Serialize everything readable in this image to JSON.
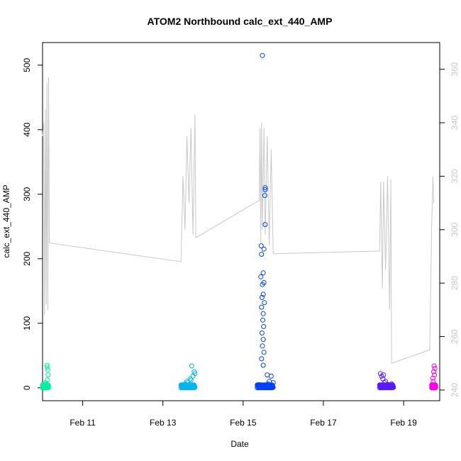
{
  "chart_data": {
    "type": "scatter",
    "title": "ATOM2 Northbound calc_ext_440_AMP",
    "xlabel": "Date",
    "ylabel": "calc_ext_440_AMP",
    "x_ticks": [
      "Feb 11",
      "Feb 13",
      "Feb 15",
      "Feb 17",
      "Feb 19"
    ],
    "y_ticks": [
      "0",
      "100",
      "200",
      "300",
      "400",
      "500"
    ],
    "y2_ticks": [
      "240",
      "260",
      "280",
      "300",
      "320",
      "340",
      "360"
    ],
    "xlim_days": [
      10,
      19.9
    ],
    "ylim": [
      -20,
      535
    ],
    "y2lim": [
      236,
      370
    ],
    "line_color": "#c8c8c8",
    "y2_color": "#c8c8c8",
    "grid": false,
    "series": [
      {
        "color": "#00f0a0",
        "x_range_days": [
          10.0,
          10.15
        ],
        "points": [
          [
            10.02,
            2
          ],
          [
            10.04,
            5
          ],
          [
            10.06,
            1
          ],
          [
            10.08,
            8
          ],
          [
            10.1,
            3
          ],
          [
            10.12,
            12
          ],
          [
            10.14,
            20
          ],
          [
            10.13,
            28
          ],
          [
            10.11,
            35
          ],
          [
            10.12,
            32
          ],
          [
            10.05,
            4
          ],
          [
            10.09,
            6
          ]
        ]
      },
      {
        "color": "#00b4f0",
        "x_range_days": [
          13.45,
          13.8
        ],
        "points": [
          [
            13.5,
            2
          ],
          [
            13.55,
            6
          ],
          [
            13.6,
            10
          ],
          [
            13.65,
            4
          ],
          [
            13.7,
            12
          ],
          [
            13.72,
            34
          ],
          [
            13.75,
            18
          ],
          [
            13.78,
            25
          ],
          [
            13.8,
            22
          ],
          [
            13.62,
            8
          ],
          [
            13.68,
            14
          ]
        ]
      },
      {
        "color": "#0040ff",
        "x_range_days": [
          15.35,
          15.75
        ],
        "points": [
          [
            15.48,
            515
          ],
          [
            15.55,
            310
          ],
          [
            15.55,
            307
          ],
          [
            15.54,
            298
          ],
          [
            15.55,
            253
          ],
          [
            15.45,
            220
          ],
          [
            15.52,
            215
          ],
          [
            15.46,
            207
          ],
          [
            15.5,
            178
          ],
          [
            15.44,
            172
          ],
          [
            15.52,
            163
          ],
          [
            15.48,
            160
          ],
          [
            15.5,
            145
          ],
          [
            15.47,
            140
          ],
          [
            15.53,
            132
          ],
          [
            15.46,
            125
          ],
          [
            15.5,
            115
          ],
          [
            15.49,
            105
          ],
          [
            15.51,
            95
          ],
          [
            15.47,
            85
          ],
          [
            15.5,
            75
          ],
          [
            15.48,
            65
          ],
          [
            15.52,
            55
          ],
          [
            15.46,
            45
          ],
          [
            15.5,
            35
          ],
          [
            15.6,
            20
          ],
          [
            15.7,
            18
          ],
          [
            15.65,
            10
          ],
          [
            15.75,
            8
          ],
          [
            15.4,
            5
          ],
          [
            15.58,
            3
          ],
          [
            15.62,
            6
          ],
          [
            15.72,
            2
          ]
        ]
      },
      {
        "color": "#5a1aff",
        "x_range_days": [
          18.4,
          18.75
        ],
        "points": [
          [
            18.42,
            22
          ],
          [
            18.45,
            18
          ],
          [
            18.5,
            20
          ],
          [
            18.55,
            10
          ],
          [
            18.6,
            5
          ],
          [
            18.65,
            3
          ],
          [
            18.7,
            6
          ],
          [
            18.72,
            2
          ],
          [
            18.48,
            14
          ],
          [
            18.52,
            8
          ]
        ]
      },
      {
        "color": "#ff00e6",
        "x_range_days": [
          19.7,
          19.8
        ],
        "points": [
          [
            19.71,
            5
          ],
          [
            19.73,
            15
          ],
          [
            19.75,
            25
          ],
          [
            19.76,
            34
          ],
          [
            19.78,
            30
          ],
          [
            19.74,
            10
          ],
          [
            19.72,
            2
          ],
          [
            19.77,
            20
          ]
        ]
      }
    ],
    "line_y2": [
      [
        10.0,
        335
      ],
      [
        10.03,
        340
      ],
      [
        10.05,
        268
      ],
      [
        10.07,
        345
      ],
      [
        10.09,
        272
      ],
      [
        10.11,
        355
      ],
      [
        10.13,
        270
      ],
      [
        10.15,
        357
      ],
      [
        10.17,
        295
      ],
      [
        13.45,
        288
      ],
      [
        13.5,
        320
      ],
      [
        13.55,
        300
      ],
      [
        13.6,
        335
      ],
      [
        13.65,
        310
      ],
      [
        13.7,
        338
      ],
      [
        13.75,
        298
      ],
      [
        13.8,
        343
      ],
      [
        13.82,
        297
      ],
      [
        15.4,
        311
      ],
      [
        15.42,
        338
      ],
      [
        15.44,
        295
      ],
      [
        15.46,
        340
      ],
      [
        15.48,
        300
      ],
      [
        15.52,
        338
      ],
      [
        15.55,
        298
      ],
      [
        15.6,
        335
      ],
      [
        15.65,
        294
      ],
      [
        15.7,
        330
      ],
      [
        15.75,
        291
      ],
      [
        18.4,
        292
      ],
      [
        18.43,
        318
      ],
      [
        18.47,
        278
      ],
      [
        18.5,
        318
      ],
      [
        18.55,
        285
      ],
      [
        18.6,
        320
      ],
      [
        18.65,
        270
      ],
      [
        18.68,
        319
      ],
      [
        18.7,
        250
      ],
      [
        19.65,
        255
      ],
      [
        19.7,
        302
      ],
      [
        19.73,
        320
      ],
      [
        19.75,
        310
      ]
    ]
  }
}
